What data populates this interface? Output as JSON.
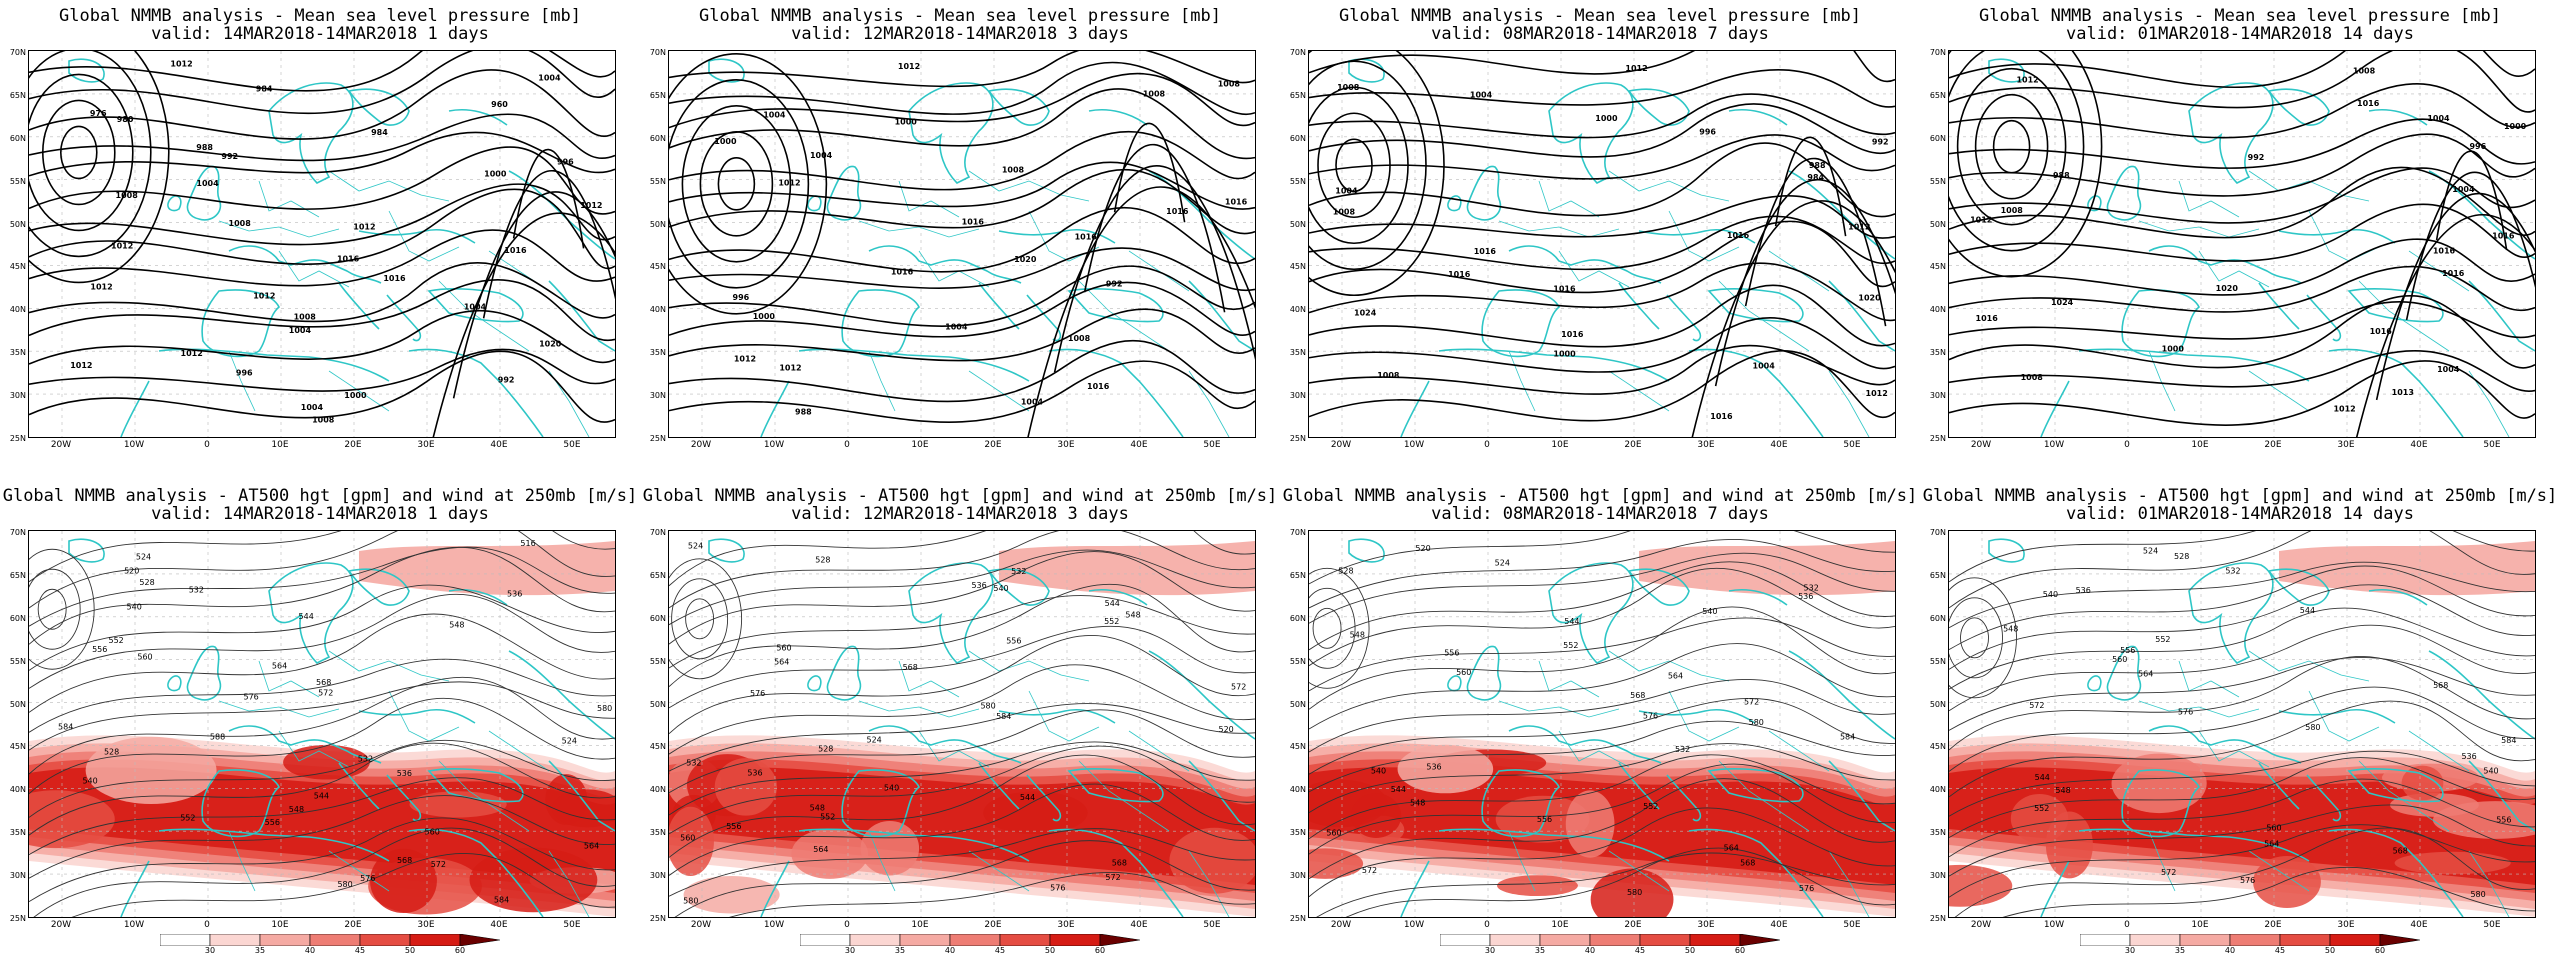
{
  "pressure_title": "Global NMMB analysis - Mean sea level pressure [mb]",
  "height_title": "Global NMMB analysis - AT500 hgt [gpm] and wind at 250mb [m/s]",
  "panels": [
    {
      "id": "mslp-1d",
      "kind": "mslp",
      "valid": "valid: 14MAR2018-14MAR2018   1 days"
    },
    {
      "id": "mslp-3d",
      "kind": "mslp",
      "valid": "valid: 12MAR2018-14MAR2018   3 days"
    },
    {
      "id": "mslp-7d",
      "kind": "mslp",
      "valid": "valid: 08MAR2018-14MAR2018   7 days"
    },
    {
      "id": "mslp-14d",
      "kind": "mslp",
      "valid": "valid: 01MAR2018-14MAR2018  14 days"
    },
    {
      "id": "hgt-1d",
      "kind": "hgt",
      "valid": "valid: 14MAR2018-14MAR2018   1 days"
    },
    {
      "id": "hgt-3d",
      "kind": "hgt",
      "valid": "valid: 12MAR2018-14MAR2018   3 days"
    },
    {
      "id": "hgt-7d",
      "kind": "hgt",
      "valid": "valid: 08MAR2018-14MAR2018   7 days"
    },
    {
      "id": "hgt-14d",
      "kind": "hgt",
      "valid": "valid: 01MAR2018-14MAR2018  14 days"
    }
  ],
  "lat_labels": [
    "70N",
    "65N",
    "60N",
    "55N",
    "50N",
    "45N",
    "40N",
    "35N",
    "30N",
    "25N"
  ],
  "lon_labels": [
    "20W",
    "10W",
    "0",
    "10E",
    "20E",
    "30E",
    "40E",
    "50E"
  ],
  "colorbar_ticks": [
    "30",
    "35",
    "40",
    "45",
    "50",
    "60"
  ],
  "colors": {
    "coastline": "#2ec6c6",
    "isoline_bold": "#000000",
    "isoline_thin": "#333333",
    "wind_shades": [
      "#ffffff",
      "#fbd6d2",
      "#f5aaa3",
      "#ee7d74",
      "#e54d43",
      "#d61c15",
      "#6a0000"
    ]
  },
  "contour_labels": {
    "mslp-1d": [
      "1012",
      "1004",
      "984",
      "960",
      "976",
      "980",
      "984",
      "988",
      "992",
      "996",
      "1000",
      "1004",
      "1008",
      "1012",
      "1008",
      "1012",
      "1012",
      "1016",
      "1016",
      "1016",
      "1012",
      "1012",
      "1004",
      "1008",
      "1004",
      "1020",
      "1012",
      "1012",
      "996",
      "992",
      "1000",
      "1004",
      "1008"
    ],
    "mslp-3d": [
      "1012",
      "1008",
      "1008",
      "1004",
      "1000",
      "1000",
      "1004",
      "1008",
      "1012",
      "1016",
      "1016",
      "1016",
      "1016",
      "1020",
      "1016",
      "992",
      "996",
      "1000",
      "1004",
      "1008",
      "1012",
      "1012",
      "1016",
      "1004",
      "988"
    ],
    "mslp-7d": [
      "1012",
      "1008",
      "1004",
      "1000",
      "996",
      "992",
      "988",
      "984",
      "1004",
      "1008",
      "1012",
      "1016",
      "1016",
      "1016",
      "1016",
      "1020",
      "1024",
      "1016",
      "1000",
      "1004",
      "1008",
      "1012",
      "1016"
    ],
    "mslp-14d": [
      "1008",
      "1012",
      "1016",
      "1004",
      "1000",
      "996",
      "992",
      "988",
      "1004",
      "1008",
      "1012",
      "1016",
      "1016",
      "1016",
      "1020",
      "1024",
      "1016",
      "1016",
      "1000",
      "1004",
      "1008",
      "1013",
      "1012"
    ],
    "hgt-1d": [
      "516",
      "524",
      "520",
      "528",
      "532",
      "536",
      "540",
      "544",
      "548",
      "552",
      "556",
      "560",
      "564",
      "568",
      "572",
      "576",
      "580",
      "584",
      "588",
      "524",
      "528",
      "532",
      "536",
      "540",
      "544",
      "548",
      "552",
      "556",
      "560",
      "564",
      "568",
      "572",
      "576",
      "580",
      "584"
    ],
    "hgt-3d": [
      "524",
      "528",
      "532",
      "536",
      "540",
      "544",
      "548",
      "552",
      "556",
      "560",
      "564",
      "568",
      "572",
      "576",
      "580",
      "584",
      "520",
      "524",
      "528",
      "532",
      "536",
      "540",
      "544",
      "548",
      "552",
      "556",
      "560",
      "564",
      "568",
      "572",
      "576",
      "580"
    ],
    "hgt-7d": [
      "520",
      "524",
      "528",
      "532",
      "536",
      "540",
      "544",
      "548",
      "552",
      "556",
      "560",
      "564",
      "568",
      "572",
      "576",
      "580",
      "584",
      "532",
      "536",
      "540",
      "544",
      "548",
      "552",
      "556",
      "560",
      "564",
      "568",
      "572",
      "576",
      "580"
    ],
    "hgt-14d": [
      "524",
      "528",
      "532",
      "536",
      "540",
      "544",
      "548",
      "552",
      "556",
      "560",
      "564",
      "568",
      "572",
      "576",
      "580",
      "584",
      "536",
      "540",
      "544",
      "548",
      "552",
      "556",
      "560",
      "564",
      "568",
      "572",
      "576",
      "580"
    ]
  }
}
